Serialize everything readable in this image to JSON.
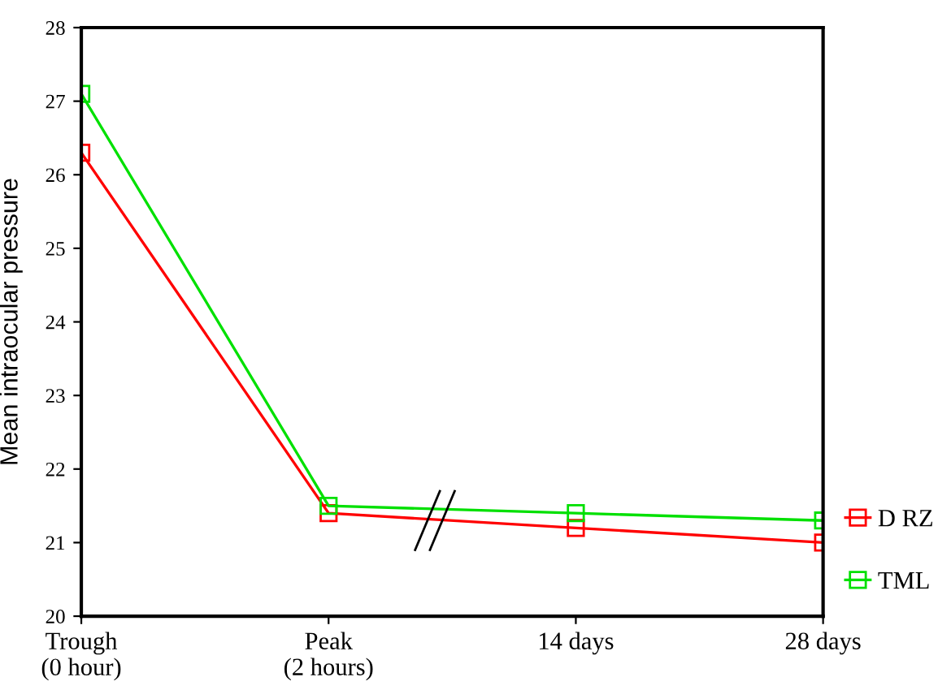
{
  "chart_data": {
    "type": "line",
    "ylabel": "Mean intraocular pressure",
    "categories": [
      "Trough\n(0 hour)",
      "Peak\n(2 hours)",
      "14 days",
      "28 days"
    ],
    "series": [
      {
        "name": "D RZ",
        "color": "#ff0000",
        "values": [
          26.3,
          21.4,
          21.2,
          21.0
        ]
      },
      {
        "name": "TML",
        "color": "#00e000",
        "values": [
          27.1,
          21.5,
          21.4,
          21.3
        ]
      }
    ],
    "ylim": [
      20,
      28
    ],
    "yticks": [
      20,
      21,
      22,
      23,
      24,
      25,
      26,
      27,
      28
    ],
    "marker": "square",
    "line_style": "solid",
    "grid": false,
    "legend": "right"
  }
}
